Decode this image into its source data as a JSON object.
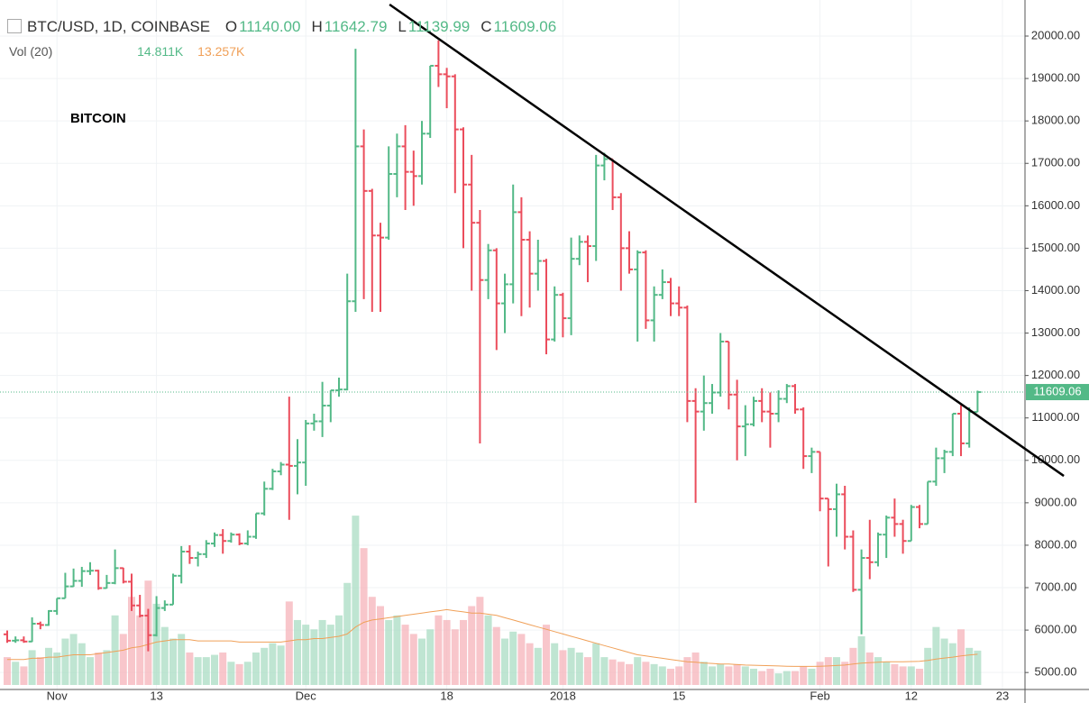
{
  "chart_data": {
    "type": "ohlc",
    "title": "BTC/USD, 1D, COINBASE",
    "annotation": "BITCOIN",
    "legend_values": [
      {
        "key": "O",
        "label": "11140.00"
      },
      {
        "key": "H",
        "label": "11642.79"
      },
      {
        "key": "L",
        "label": "11139.99"
      },
      {
        "key": "C",
        "label": "11609.06"
      }
    ],
    "categories": [
      null,
      null,
      null,
      null,
      null,
      null,
      "Nov",
      null,
      null,
      null,
      null,
      null,
      null,
      null,
      null,
      null,
      null,
      null,
      "13",
      null,
      null,
      null,
      null,
      null,
      null,
      null,
      null,
      null,
      null,
      null,
      null,
      null,
      null,
      null,
      null,
      null,
      "Dec",
      null,
      null,
      null,
      null,
      null,
      null,
      null,
      null,
      null,
      null,
      null,
      null,
      null,
      null,
      null,
      null,
      "18",
      null,
      null,
      null,
      null,
      null,
      null,
      null,
      null,
      null,
      null,
      null,
      null,
      null,
      "2018",
      null,
      null,
      null,
      null,
      null,
      null,
      null,
      null,
      null,
      null,
      null,
      null,
      null,
      "15",
      null,
      null,
      null,
      null,
      null,
      null,
      null,
      null,
      null,
      null,
      null,
      null,
      null,
      null,
      null,
      null,
      "Feb",
      null,
      null,
      null,
      null,
      null,
      null,
      null,
      null,
      null,
      null,
      "12",
      null,
      null,
      null,
      null,
      null,
      null,
      null,
      null,
      null,
      null,
      "23"
    ],
    "open": [
      5900,
      5750,
      5760,
      5730,
      6150,
      6120,
      6450,
      6750,
      7030,
      7160,
      7390,
      7400,
      6990,
      7110,
      7460,
      7140,
      6580,
      6340,
      5880,
      6520,
      6600,
      7280,
      7850,
      7700,
      7790,
      8040,
      8240,
      8100,
      8250,
      8040,
      8200,
      8750,
      9330,
      9740,
      9900,
      9870,
      9950,
      10870,
      10920,
      11290,
      11650,
      11670,
      13750,
      17400,
      16350,
      15300,
      15250,
      16750,
      17400,
      16800,
      16700,
      17700,
      19300,
      19100,
      19050,
      17800,
      16500,
      15600,
      14250,
      14950,
      13700,
      14150,
      15850,
      15200,
      14400,
      14700,
      12850,
      13900,
      13350,
      14750,
      15150,
      15050,
      16950,
      17100,
      16200,
      15000,
      14500,
      14900,
      13300,
      13900,
      14200,
      13700,
      13600,
      11400,
      11150,
      11350,
      11600,
      12800,
      11550,
      10800,
      10850,
      11400,
      11150,
      11100,
      11450,
      11750,
      11200,
      10100,
      10200,
      9100,
      8850,
      9200,
      8200,
      6950,
      7700,
      7600,
      8250,
      8650,
      8500,
      8100,
      8900,
      8500,
      9500,
      10050,
      10200,
      11100,
      10400,
      11140,
      null,
      null,
      null
    ],
    "high": [
      5990,
      5850,
      5850,
      6300,
      6200,
      6470,
      6750,
      7350,
      7450,
      7490,
      7600,
      7420,
      7300,
      7900,
      7470,
      7330,
      6830,
      6500,
      6800,
      6700,
      7330,
      7980,
      8000,
      7850,
      8120,
      8300,
      8380,
      8300,
      8280,
      8350,
      8750,
      9500,
      9800,
      9960,
      11500,
      10500,
      10950,
      11100,
      11850,
      11650,
      11950,
      14400,
      19700,
      17800,
      16400,
      15600,
      17400,
      17700,
      17900,
      17300,
      18000,
      19300,
      19900,
      19250,
      19100,
      17850,
      17200,
      15900,
      15100,
      15000,
      14400,
      16500,
      16200,
      15400,
      15200,
      14750,
      14100,
      13950,
      15250,
      15300,
      15300,
      17200,
      17250,
      17100,
      16300,
      15400,
      14950,
      14950,
      14100,
      14500,
      14300,
      14100,
      13650,
      11700,
      12000,
      11800,
      13000,
      12800,
      11900,
      11300,
      11500,
      11700,
      11600,
      11650,
      11800,
      11800,
      11250,
      10300,
      10200,
      9100,
      9450,
      9400,
      8350,
      7900,
      8600,
      8300,
      8700,
      9100,
      8600,
      8950,
      8950,
      9500,
      10300,
      10250,
      11100,
      11300,
      11250,
      11642.79,
      null,
      null,
      null
    ],
    "low": [
      5700,
      5700,
      5700,
      5720,
      6020,
      6100,
      6360,
      6750,
      7020,
      7020,
      7300,
      6950,
      6980,
      7080,
      7100,
      6450,
      6300,
      5500,
      5850,
      6450,
      6600,
      7100,
      7560,
      7500,
      7700,
      7960,
      7800,
      8060,
      8000,
      8000,
      8150,
      8700,
      9300,
      9650,
      8600,
      9200,
      9400,
      10700,
      10550,
      10900,
      11500,
      11650,
      13500,
      13800,
      13500,
      13500,
      15200,
      16200,
      15900,
      16000,
      16500,
      17600,
      18800,
      18300,
      16300,
      15000,
      14000,
      10400,
      13800,
      12600,
      13000,
      13700,
      13400,
      13600,
      14000,
      12500,
      12800,
      12900,
      12950,
      14600,
      14200,
      14700,
      16600,
      15900,
      14000,
      14400,
      12800,
      13100,
      12800,
      13800,
      13400,
      13400,
      10900,
      9000,
      10700,
      11100,
      11500,
      11200,
      10000,
      10100,
      10800,
      10900,
      10300,
      10900,
      11350,
      11100,
      9800,
      9700,
      8800,
      7500,
      8200,
      7900,
      6900,
      5900,
      7200,
      7500,
      7700,
      8200,
      7800,
      8100,
      8400,
      8500,
      9400,
      9700,
      10100,
      10100,
      10300,
      11139.99,
      null,
      null,
      null
    ],
    "close": [
      5750,
      5760,
      5730,
      6150,
      6120,
      6450,
      6750,
      7030,
      7160,
      7390,
      7400,
      6990,
      7110,
      7460,
      7140,
      6580,
      6340,
      5880,
      6520,
      6600,
      7280,
      7850,
      7700,
      7790,
      8040,
      8240,
      8100,
      8250,
      8040,
      8200,
      8750,
      9330,
      9740,
      9900,
      9870,
      9950,
      10870,
      10920,
      11290,
      11650,
      11670,
      13750,
      17400,
      16350,
      15300,
      15250,
      16750,
      17400,
      16800,
      16700,
      17700,
      19300,
      19100,
      19050,
      17800,
      16500,
      15600,
      14250,
      14950,
      13700,
      14150,
      15850,
      15200,
      14400,
      14700,
      12850,
      13900,
      13350,
      14750,
      15150,
      15050,
      16950,
      17100,
      16200,
      15000,
      14500,
      14900,
      13300,
      13900,
      14200,
      13700,
      13600,
      11400,
      11150,
      11350,
      11600,
      12800,
      11550,
      10800,
      10850,
      11400,
      11150,
      11100,
      11450,
      11750,
      11200,
      10100,
      10200,
      9100,
      8850,
      9200,
      8200,
      6950,
      7700,
      7600,
      8250,
      8650,
      8500,
      8100,
      8900,
      8500,
      9500,
      10050,
      10200,
      11100,
      10400,
      11140,
      11609.06,
      null,
      null,
      null
    ],
    "up_color": "#53b987",
    "down_color": "#eb4d5c",
    "ylim": [
      4600,
      20850
    ],
    "yticks": [
      {
        "value": 5000,
        "label": "5000.00"
      },
      {
        "value": 6000,
        "label": "6000.00"
      },
      {
        "value": 7000,
        "label": "7000.00"
      },
      {
        "value": 8000,
        "label": "8000.00"
      },
      {
        "value": 9000,
        "label": "9000.00"
      },
      {
        "value": 10000,
        "label": "10000.00"
      },
      {
        "value": 11000,
        "label": "11000.00"
      },
      {
        "value": 12000,
        "label": "12000.00"
      },
      {
        "value": 13000,
        "label": "13000.00"
      },
      {
        "value": 14000,
        "label": "14000.00"
      },
      {
        "value": 15000,
        "label": "15000.00"
      },
      {
        "value": 16000,
        "label": "16000.00"
      },
      {
        "value": 17000,
        "label": "17000.00"
      },
      {
        "value": 18000,
        "label": "18000.00"
      },
      {
        "value": 19000,
        "label": "19000.00"
      },
      {
        "value": 20000,
        "label": "20000.00"
      }
    ],
    "grid": true,
    "last_price_label": "11609.06",
    "volume": {
      "name": "Vol (20)",
      "values": [
        12,
        10,
        8,
        15,
        12,
        16,
        14,
        20,
        22,
        18,
        12,
        14,
        15,
        30,
        22,
        38,
        30,
        45,
        35,
        25,
        20,
        22,
        14,
        12,
        12,
        13,
        14,
        10,
        9,
        10,
        14,
        16,
        18,
        17,
        36,
        28,
        26,
        24,
        28,
        26,
        30,
        44,
        73,
        59,
        38,
        34,
        28,
        30,
        26,
        22,
        20,
        24,
        30,
        28,
        24,
        28,
        34,
        38,
        30,
        25,
        20,
        23,
        22,
        18,
        16,
        26,
        18,
        15,
        16,
        14,
        12,
        18,
        12,
        11,
        10,
        9,
        12,
        10,
        9,
        8,
        7,
        8,
        12,
        14,
        10,
        8,
        9,
        8,
        9,
        8,
        7,
        6,
        7,
        5,
        6,
        6,
        8,
        7,
        10,
        12,
        12,
        10,
        16,
        21,
        14,
        12,
        10,
        9,
        8,
        8,
        7,
        16,
        25,
        20,
        18,
        24,
        16,
        14.811,
        null,
        null,
        null
      ],
      "ma": [
        11,
        11,
        11,
        11.5,
        11.5,
        12,
        12,
        12.5,
        13,
        13,
        13,
        13.5,
        14,
        14.5,
        15,
        16,
        16.5,
        17.5,
        18.5,
        19,
        19.5,
        19.5,
        19.5,
        19,
        19,
        19,
        19,
        19,
        18.5,
        18.5,
        18.5,
        18.5,
        18.5,
        18.5,
        19,
        19.5,
        19.5,
        20,
        20,
        20.5,
        21,
        22,
        25,
        27,
        28,
        28.5,
        29,
        29.5,
        30,
        30.5,
        31,
        31.5,
        32,
        32.5,
        32,
        31.5,
        31,
        31,
        30.5,
        30,
        29,
        28,
        27,
        26,
        25,
        24,
        23,
        22,
        21,
        20,
        19,
        18,
        17,
        16,
        15,
        14,
        13,
        12.5,
        12,
        11.5,
        11,
        10.5,
        10,
        9.8,
        9.5,
        9.3,
        9,
        9,
        8.8,
        8.6,
        8.5,
        8.4,
        8.3,
        8.2,
        8.1,
        8,
        8,
        8,
        8.1,
        8.2,
        8.4,
        8.6,
        9,
        9.4,
        9.6,
        9.8,
        10,
        10,
        10,
        10.1,
        10.2,
        10.6,
        11.2,
        11.6,
        12,
        12.5,
        12.9,
        13.257,
        null,
        null,
        null
      ],
      "last_labels": [
        "14.811K",
        "13.257K"
      ],
      "y2lim": [
        0,
        75
      ],
      "up_color": "#a9dcc3",
      "down_color": "#f5b3ba",
      "ma_color": "#f0a058"
    },
    "trendline": {
      "x": [
        46.1,
        127.4
      ],
      "y": [
        20744,
        9633
      ],
      "color": "#000000"
    }
  }
}
